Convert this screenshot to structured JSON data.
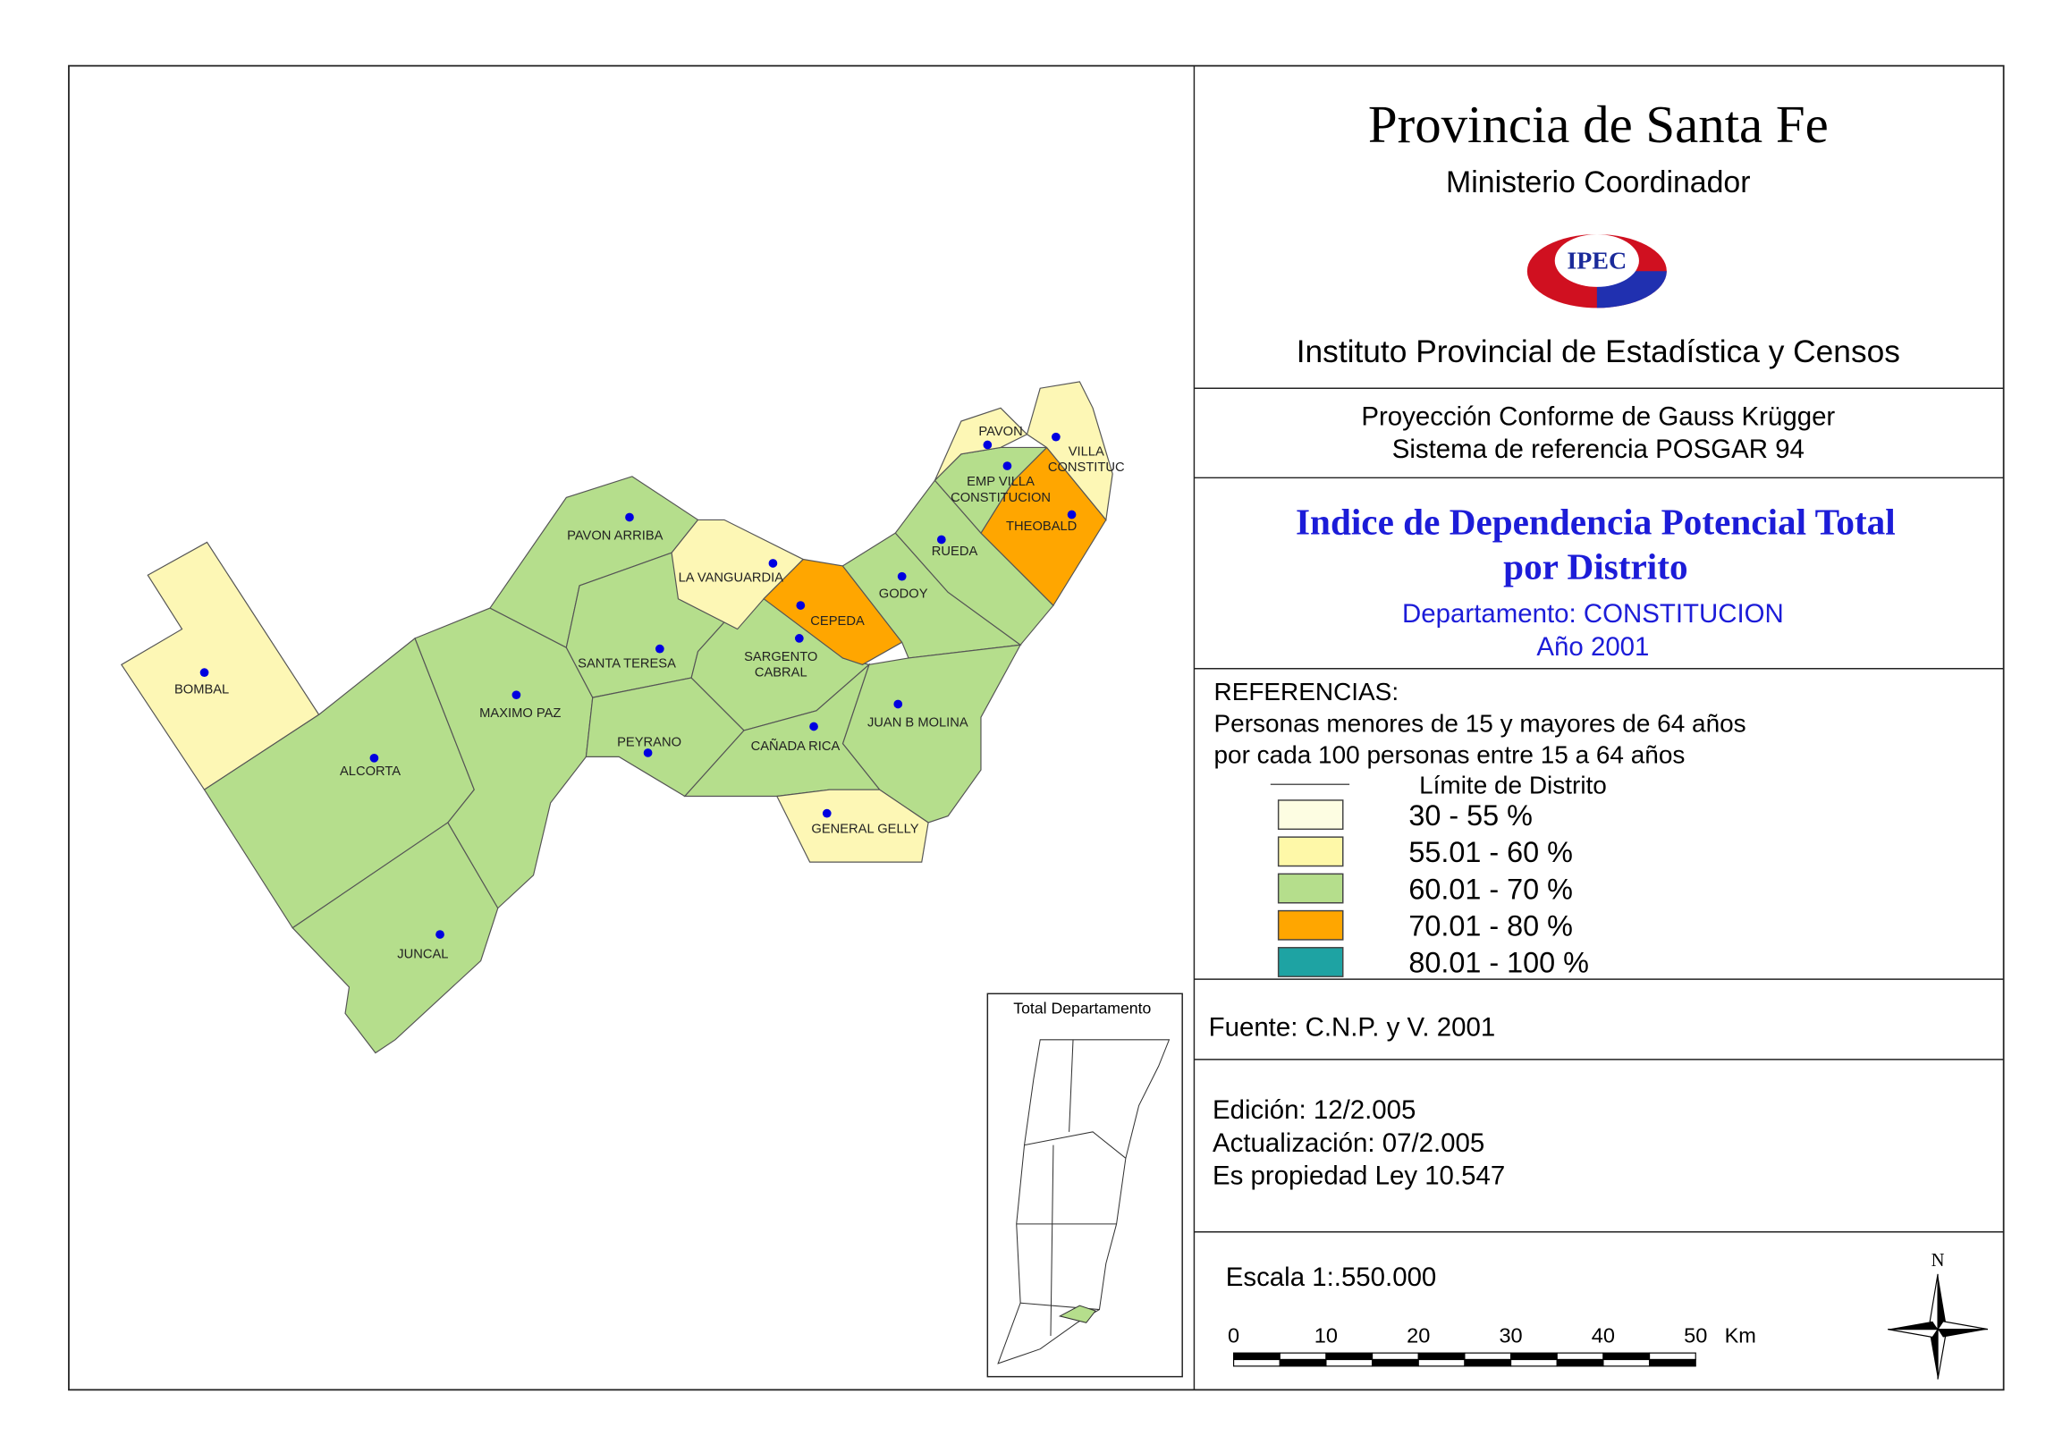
{
  "header": {
    "title": "Provincia de Santa Fe",
    "subtitle": "Ministerio Coordinador",
    "logo": "IPEC",
    "institute": "Instituto Provincial de Estadística y Censos"
  },
  "projection": [
    "Proyección Conforme de Gauss Krügger",
    "Sistema de referencia POSGAR 94"
  ],
  "map_title": {
    "title": [
      "Indice de Dependencia Potencial Total",
      "por Distrito"
    ],
    "department": "Departamento:  CONSTITUCION",
    "year": "Año 2001"
  },
  "legend": {
    "heading": "REFERENCIAS:",
    "description": [
      "Personas menores de 15 y mayores de 64 años",
      "por cada 100 personas entre 15 a 64 años"
    ],
    "boundary": "Límite de Distrito",
    "items": [
      {
        "label": "30 - 55 %",
        "color": "#fdfde2"
      },
      {
        "label": "55.01 - 60 %",
        "color": "#fef8a8"
      },
      {
        "label": "60.01 - 70 %",
        "color": "#b5de8c"
      },
      {
        "label": "70.01 - 80 %",
        "color": "#ffa600"
      },
      {
        "label": "80.01 - 100 %",
        "color": "#1ea3a3"
      }
    ]
  },
  "source": "Fuente:  C.N.P. y V. 2001",
  "edition": [
    "Edición:  12/2.005",
    "Actualización:  07/2.005",
    "Es propiedad Ley 10.547"
  ],
  "scale": {
    "label": "Escala 1:.550.000",
    "ticks": [
      "0",
      "10",
      "20",
      "30",
      "40",
      "50"
    ],
    "unit": "Km"
  },
  "north": "N",
  "inset": {
    "title": "Total Departamento"
  },
  "districts": [
    {
      "label": [
        "BOMBAL"
      ]
    },
    {
      "label": [
        "ALCORTA"
      ]
    },
    {
      "label": [
        "JUNCAL"
      ]
    },
    {
      "label": [
        "MAXIMO PAZ"
      ]
    },
    {
      "label": [
        "PAVON ARRIBA"
      ]
    },
    {
      "label": [
        "SANTA TERESA"
      ]
    },
    {
      "label": [
        "PEYRANO"
      ]
    },
    {
      "label": [
        "LA VANGUARDIA"
      ]
    },
    {
      "label": [
        "CEPEDA"
      ]
    },
    {
      "label": [
        "SARGENTO",
        "CABRAL"
      ]
    },
    {
      "label": [
        "GODOY"
      ]
    },
    {
      "label": [
        "RUEDA"
      ]
    },
    {
      "label": [
        "THEOBALD"
      ]
    },
    {
      "label": [
        "JUAN B MOLINA"
      ]
    },
    {
      "label": [
        "CAÑADA RICA"
      ]
    },
    {
      "label": [
        "GENERAL GELLY"
      ]
    },
    {
      "label": [
        "EMP VILLA",
        "CONSTITUCION"
      ]
    },
    {
      "label": [
        "PAVON"
      ]
    },
    {
      "label": [
        "VILLA",
        "CONSTITUC"
      ]
    }
  ]
}
